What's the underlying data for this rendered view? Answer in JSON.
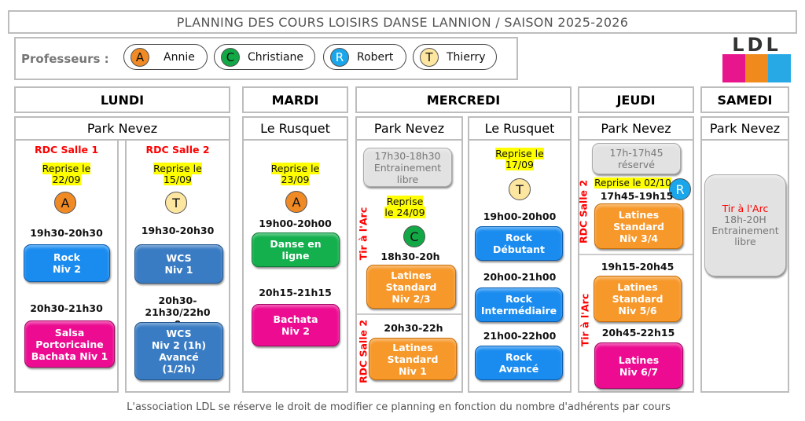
{
  "title": "PLANNING DES COURS LOISIRS DANSE LANNION / SAISON 2025-2026",
  "professeurs": {
    "label": "Professeurs :",
    "items": [
      {
        "initial": "A",
        "name": "Annie",
        "color": "#f08a24"
      },
      {
        "initial": "C",
        "name": "Christiane",
        "color": "#12a845"
      },
      {
        "initial": "R",
        "name": "Robert",
        "color": "#1aa6ea"
      },
      {
        "initial": "T",
        "name": "Thierry",
        "color": "#fde6a0"
      }
    ]
  },
  "logo": {
    "text": "LDL"
  },
  "days": [
    "LUNDI",
    "MARDI",
    "MERCREDI",
    "JEUDI",
    "SAMEDI"
  ],
  "locations": [
    "Park Nevez",
    "Le Rusquet",
    "Park Nevez",
    "Le Rusquet",
    "Park Nevez",
    "Park Nevez"
  ],
  "lundi": {
    "salle1": "RDC Salle 1",
    "reprise1": "Reprise le\n22/09",
    "prof1": "A",
    "time1": "19h30-20h30",
    "course1": "Rock\nNiv 2",
    "time2": "20h30-21h30",
    "course2": "Salsa\nPortoricaine\nBachata Niv 1",
    "salle2": "RDC Salle 2",
    "reprise2": "Reprise le\n15/09",
    "prof2": "T",
    "time3": "19h30-20h30",
    "course3": "WCS\nNiv 1",
    "time4": "20h30-\n21h30/22h0\n0",
    "course4": "WCS\nNiv 2 (1h)\nAvancé\n(1/2h)"
  },
  "mardi": {
    "reprise": "Reprise le\n23/09",
    "prof": "A",
    "time1": "19h00-20h00",
    "course1": "Danse en\nligne",
    "time2": "20h15-21h15",
    "course2": "Bachata\nNiv 2"
  },
  "mercredi_pn": {
    "libre": "17h30-18h30\nEntrainement\nlibre",
    "salle_a": "Tir à l'Arc",
    "reprise": "Reprise\nle 24/09",
    "prof": "C",
    "time1": "18h30-20h",
    "course1": "Latines\nStandard\nNiv 2/3",
    "salle_b": "RDC Salle 2",
    "time2": "20h30-22h",
    "course2": "Latines\nStandard\nNiv 1"
  },
  "mercredi_lr": {
    "reprise": "Reprise le\n17/09",
    "prof": "T",
    "time1": "19h00-20h00",
    "course1": "Rock\nDébutant",
    "time2": "20h00-21h00",
    "course2": "Rock\nIntermédiaire",
    "time3": "21h00-22h00",
    "course3": "Rock\nAvancé"
  },
  "jeudi": {
    "reserve": "17h-17h45\nréservé",
    "reprise": "Reprise le 02/10",
    "prof": "R",
    "salle_a": "RDC Salle 2",
    "time1": "17h45-19h15",
    "course1": "Latines\nStandard\nNiv 3/4",
    "salle_b": "Tir à l'Arc",
    "time2": "19h15-20h45",
    "course2": "Latines\nStandard\nNiv 5/6",
    "time3": "20h45-22h15",
    "course3": "Latines\nNiv 6/7"
  },
  "samedi": {
    "salle": "Tir à l'Arc",
    "time": "18h-20H",
    "course": "Entrainement\nlibre"
  },
  "footer": "L'association LDL se réserve le droit de modifier ce planning en fonction du nombre d'adhérents par cours"
}
